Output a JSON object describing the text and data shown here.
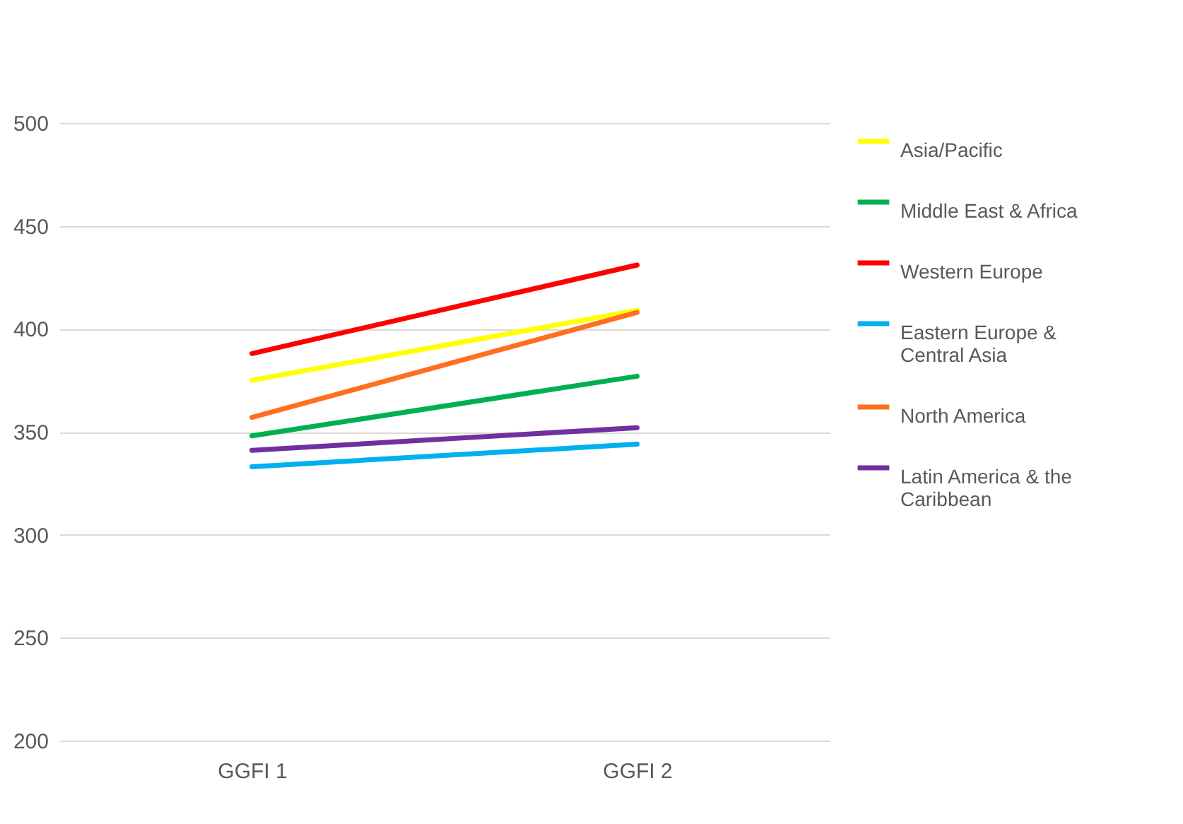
{
  "chart_data": {
    "type": "line",
    "categories": [
      "GGFI 1",
      "GGFI 2"
    ],
    "series": [
      {
        "name": "Asia/Pacific",
        "color": "#ffff00",
        "values": [
          375,
          409
        ]
      },
      {
        "name": "Middle East & Africa",
        "color": "#00b050",
        "values": [
          348,
          377
        ]
      },
      {
        "name": "Western Europe",
        "color": "#ff0000",
        "values": [
          388,
          431
        ]
      },
      {
        "name": "Eastern Europe & Central Asia",
        "color": "#00b0f0",
        "values": [
          333,
          344
        ]
      },
      {
        "name": "North America",
        "color": "#ff6f1f",
        "values": [
          357,
          408
        ]
      },
      {
        "name": "Latin America & the Caribbean",
        "color": "#7030a0",
        "values": [
          341,
          352
        ]
      }
    ],
    "ylim": [
      200,
      500
    ],
    "yticks": [
      200,
      250,
      300,
      350,
      400,
      450,
      500
    ],
    "grid": "y",
    "legend": "right",
    "marker": "none",
    "line_style": "solid"
  }
}
